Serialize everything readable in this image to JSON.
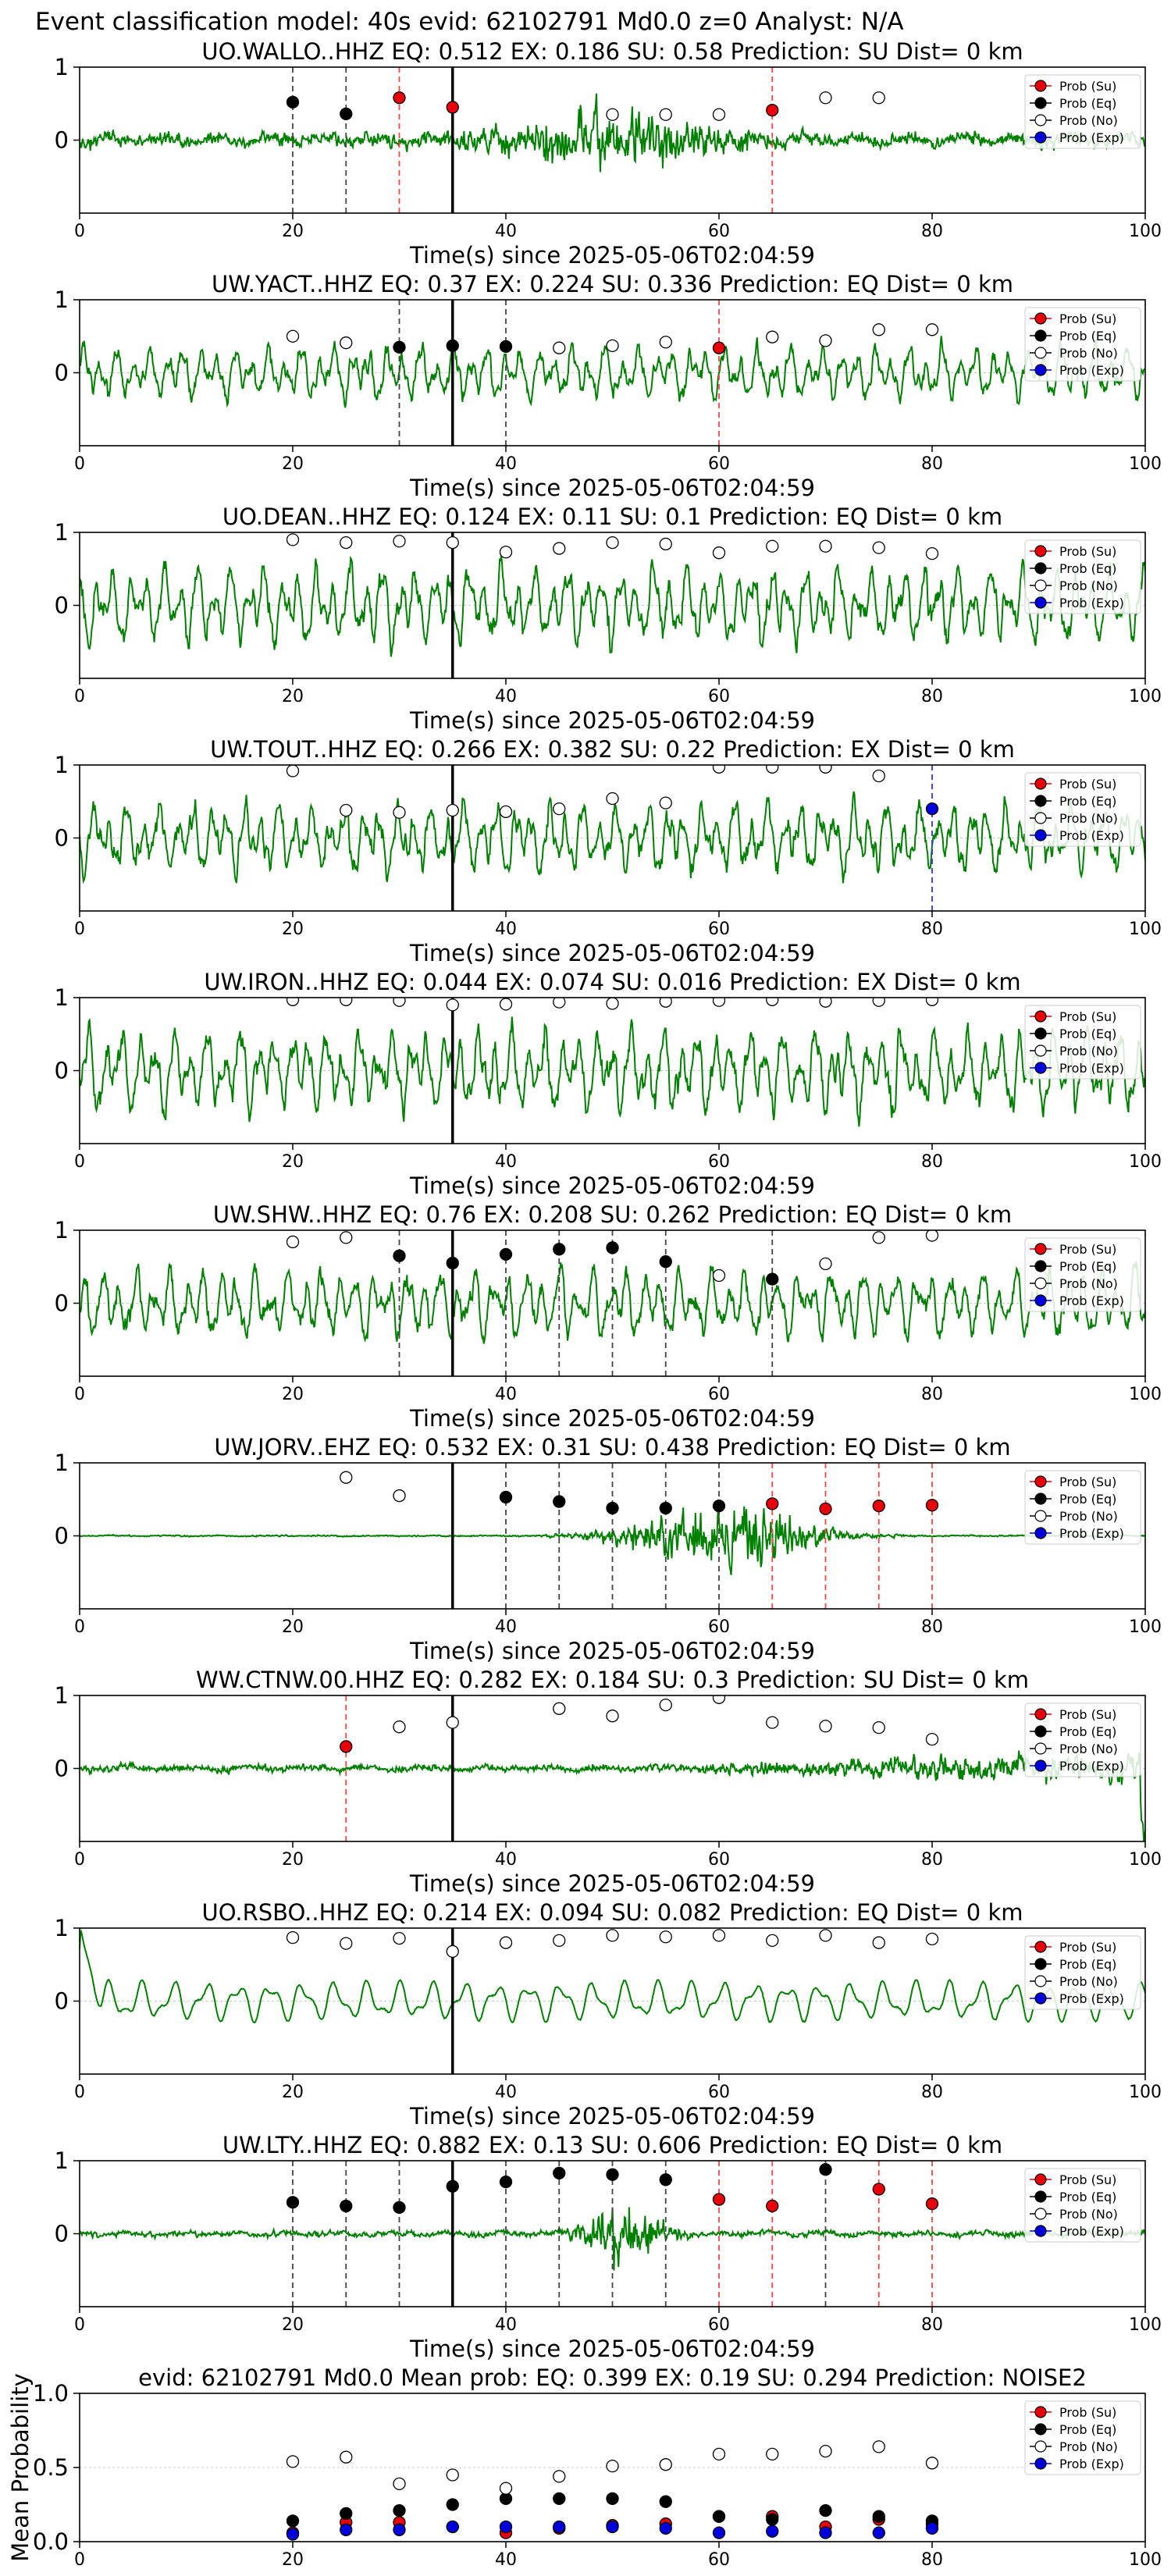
{
  "figure": {
    "suptitle": "Event classification model: 40s evid: 62102791 Md0.0 z=0 Analyst: N/A"
  },
  "legend_labels": [
    "Prob (Su)",
    "Prob (Eq)",
    "Prob (No)",
    "Prob (Exp)"
  ],
  "class_colors": {
    "su": "#e8000b",
    "eq": "#000000",
    "no": "#ffffff",
    "exp": "#0000dd"
  },
  "line_colors": {
    "waveform": "#008000",
    "su": "#ff4444",
    "eq": "#444444",
    "exp": "#3333ff",
    "onset": "#000000"
  },
  "chart_data": [
    {
      "type": "line",
      "title": "UO.WALLO..HHZ   EQ: 0.512  EX: 0.186  SU: 0.58   Prediction: SU    Dist= 0 km",
      "xlabel": "Time(s) since 2025-05-06T02:04:59",
      "xlim": [
        0,
        100
      ],
      "ylim": [
        -1,
        1
      ],
      "xticks": [
        0,
        20,
        40,
        60,
        80,
        100
      ],
      "yticks": [
        1,
        0
      ],
      "waveform": {
        "kind": "burst",
        "seed": 11,
        "amp": 0.12,
        "burst_center": 50,
        "burst_width": 12,
        "burst_amp": 0.45
      },
      "onset": 35,
      "points": [
        {
          "t": 20,
          "c": "eq",
          "p": 0.52
        },
        {
          "t": 25,
          "c": "eq",
          "p": 0.36
        },
        {
          "t": 30,
          "c": "su",
          "p": 0.58
        },
        {
          "t": 35,
          "c": "su",
          "p": 0.45
        },
        {
          "t": 50,
          "c": "no",
          "p": 0.35
        },
        {
          "t": 55,
          "c": "no",
          "p": 0.35
        },
        {
          "t": 60,
          "c": "no",
          "p": 0.35
        },
        {
          "t": 65,
          "c": "su",
          "p": 0.41
        },
        {
          "t": 70,
          "c": "no",
          "p": 0.58
        },
        {
          "t": 75,
          "c": "no",
          "p": 0.58
        }
      ]
    },
    {
      "type": "line",
      "title": "UW.YACT..HHZ   EQ: 0.37  EX: 0.224  SU: 0.336   Prediction: EQ    Dist= 0 km",
      "xlabel": "Time(s) since 2025-05-06T02:04:59",
      "xlim": [
        0,
        100
      ],
      "ylim": [
        -1,
        1
      ],
      "xticks": [
        0,
        20,
        40,
        60,
        80,
        100
      ],
      "yticks": [
        1,
        0
      ],
      "waveform": {
        "kind": "osc",
        "seed": 22,
        "amp": 0.38
      },
      "onset": 35,
      "points": [
        {
          "t": 20,
          "c": "no",
          "p": 0.5
        },
        {
          "t": 25,
          "c": "no",
          "p": 0.41
        },
        {
          "t": 30,
          "c": "eq",
          "p": 0.35
        },
        {
          "t": 35,
          "c": "eq",
          "p": 0.37
        },
        {
          "t": 40,
          "c": "eq",
          "p": 0.36
        },
        {
          "t": 45,
          "c": "no",
          "p": 0.34
        },
        {
          "t": 50,
          "c": "no",
          "p": 0.37
        },
        {
          "t": 55,
          "c": "no",
          "p": 0.42
        },
        {
          "t": 60,
          "c": "su",
          "p": 0.34
        },
        {
          "t": 65,
          "c": "no",
          "p": 0.49
        },
        {
          "t": 70,
          "c": "no",
          "p": 0.44
        },
        {
          "t": 75,
          "c": "no",
          "p": 0.59
        },
        {
          "t": 80,
          "c": "no",
          "p": 0.59
        }
      ]
    },
    {
      "type": "line",
      "title": "UO.DEAN..HHZ   EQ: 0.124  EX: 0.11  SU: 0.1   Prediction: EQ    Dist= 0 km",
      "xlabel": "Time(s) since 2025-05-06T02:04:59",
      "xlim": [
        0,
        100
      ],
      "ylim": [
        -1,
        1
      ],
      "xticks": [
        0,
        20,
        40,
        60,
        80,
        100
      ],
      "yticks": [
        1,
        0
      ],
      "waveform": {
        "kind": "osc",
        "seed": 33,
        "amp": 0.55
      },
      "onset": 35,
      "points": [
        {
          "t": 20,
          "c": "no",
          "p": 0.9
        },
        {
          "t": 25,
          "c": "no",
          "p": 0.86
        },
        {
          "t": 30,
          "c": "no",
          "p": 0.88
        },
        {
          "t": 35,
          "c": "no",
          "p": 0.86
        },
        {
          "t": 40,
          "c": "no",
          "p": 0.73
        },
        {
          "t": 45,
          "c": "no",
          "p": 0.78
        },
        {
          "t": 50,
          "c": "no",
          "p": 0.86
        },
        {
          "t": 55,
          "c": "no",
          "p": 0.84
        },
        {
          "t": 60,
          "c": "no",
          "p": 0.72
        },
        {
          "t": 65,
          "c": "no",
          "p": 0.81
        },
        {
          "t": 70,
          "c": "no",
          "p": 0.81
        },
        {
          "t": 75,
          "c": "no",
          "p": 0.79
        },
        {
          "t": 80,
          "c": "no",
          "p": 0.71
        }
      ]
    },
    {
      "type": "line",
      "title": "UW.TOUT..HHZ   EQ: 0.266  EX: 0.382  SU: 0.22   Prediction: EX    Dist= 0 km",
      "xlabel": "Time(s) since 2025-05-06T02:04:59",
      "xlim": [
        0,
        100
      ],
      "ylim": [
        -1,
        1
      ],
      "xticks": [
        0,
        20,
        40,
        60,
        80,
        100
      ],
      "yticks": [
        1,
        0
      ],
      "waveform": {
        "kind": "osc",
        "seed": 44,
        "amp": 0.5
      },
      "onset": 35,
      "points": [
        {
          "t": 20,
          "c": "no",
          "p": 0.92
        },
        {
          "t": 25,
          "c": "no",
          "p": 0.38
        },
        {
          "t": 30,
          "c": "no",
          "p": 0.35
        },
        {
          "t": 35,
          "c": "no",
          "p": 0.38
        },
        {
          "t": 40,
          "c": "no",
          "p": 0.36
        },
        {
          "t": 45,
          "c": "no",
          "p": 0.4
        },
        {
          "t": 50,
          "c": "no",
          "p": 0.54
        },
        {
          "t": 55,
          "c": "no",
          "p": 0.48
        },
        {
          "t": 60,
          "c": "no",
          "p": 0.97
        },
        {
          "t": 65,
          "c": "no",
          "p": 0.97
        },
        {
          "t": 70,
          "c": "no",
          "p": 0.97
        },
        {
          "t": 75,
          "c": "no",
          "p": 0.85
        },
        {
          "t": 80,
          "c": "exp",
          "p": 0.4
        }
      ]
    },
    {
      "type": "line",
      "title": "UW.IRON..HHZ   EQ: 0.044  EX: 0.074  SU: 0.016   Prediction: EX    Dist= 0 km",
      "xlabel": "Time(s) since 2025-05-06T02:04:59",
      "xlim": [
        0,
        100
      ],
      "ylim": [
        -1,
        1
      ],
      "xticks": [
        0,
        20,
        40,
        60,
        80,
        100
      ],
      "yticks": [
        1,
        0
      ],
      "waveform": {
        "kind": "osc",
        "seed": 55,
        "amp": 0.6
      },
      "onset": 35,
      "points": [
        {
          "t": 20,
          "c": "no",
          "p": 0.97
        },
        {
          "t": 25,
          "c": "no",
          "p": 0.97
        },
        {
          "t": 30,
          "c": "no",
          "p": 0.96
        },
        {
          "t": 35,
          "c": "no",
          "p": 0.9
        },
        {
          "t": 40,
          "c": "no",
          "p": 0.91
        },
        {
          "t": 45,
          "c": "no",
          "p": 0.94
        },
        {
          "t": 50,
          "c": "no",
          "p": 0.92
        },
        {
          "t": 55,
          "c": "no",
          "p": 0.95
        },
        {
          "t": 60,
          "c": "no",
          "p": 0.96
        },
        {
          "t": 65,
          "c": "no",
          "p": 0.97
        },
        {
          "t": 70,
          "c": "no",
          "p": 0.95
        },
        {
          "t": 75,
          "c": "no",
          "p": 0.96
        },
        {
          "t": 80,
          "c": "no",
          "p": 0.97
        }
      ]
    },
    {
      "type": "line",
      "title": "UW.SHW..HHZ   EQ: 0.76  EX: 0.208  SU: 0.262   Prediction: EQ    Dist= 0 km",
      "xlabel": "Time(s) since 2025-05-06T02:04:59",
      "xlim": [
        0,
        100
      ],
      "ylim": [
        -1,
        1
      ],
      "xticks": [
        0,
        20,
        40,
        60,
        80,
        100
      ],
      "yticks": [
        1,
        0
      ],
      "waveform": {
        "kind": "osc",
        "seed": 66,
        "amp": 0.48
      },
      "onset": 35,
      "points": [
        {
          "t": 20,
          "c": "no",
          "p": 0.84
        },
        {
          "t": 25,
          "c": "no",
          "p": 0.9
        },
        {
          "t": 30,
          "c": "eq",
          "p": 0.65
        },
        {
          "t": 35,
          "c": "eq",
          "p": 0.55
        },
        {
          "t": 40,
          "c": "eq",
          "p": 0.67
        },
        {
          "t": 45,
          "c": "eq",
          "p": 0.74
        },
        {
          "t": 50,
          "c": "eq",
          "p": 0.76
        },
        {
          "t": 55,
          "c": "eq",
          "p": 0.57
        },
        {
          "t": 60,
          "c": "no",
          "p": 0.38
        },
        {
          "t": 65,
          "c": "eq",
          "p": 0.33
        },
        {
          "t": 70,
          "c": "no",
          "p": 0.54
        },
        {
          "t": 75,
          "c": "no",
          "p": 0.9
        },
        {
          "t": 80,
          "c": "no",
          "p": 0.93
        }
      ]
    },
    {
      "type": "line",
      "title": "UW.JORV..EHZ   EQ: 0.532  EX: 0.31  SU: 0.438   Prediction: EQ    Dist= 0 km",
      "xlabel": "Time(s) since 2025-05-06T02:04:59",
      "xlim": [
        0,
        100
      ],
      "ylim": [
        -1,
        1
      ],
      "xticks": [
        0,
        20,
        40,
        60,
        80,
        100
      ],
      "yticks": [
        1,
        0
      ],
      "waveform": {
        "kind": "burst",
        "seed": 77,
        "amp": 0.012,
        "burst_center": 60,
        "burst_width": 9,
        "burst_amp": 0.55
      },
      "onset": 35,
      "points": [
        {
          "t": 25,
          "c": "no",
          "p": 0.8
        },
        {
          "t": 30,
          "c": "no",
          "p": 0.55
        },
        {
          "t": 40,
          "c": "eq",
          "p": 0.53
        },
        {
          "t": 45,
          "c": "eq",
          "p": 0.47
        },
        {
          "t": 50,
          "c": "eq",
          "p": 0.38
        },
        {
          "t": 55,
          "c": "eq",
          "p": 0.38
        },
        {
          "t": 60,
          "c": "eq",
          "p": 0.41
        },
        {
          "t": 65,
          "c": "su",
          "p": 0.44
        },
        {
          "t": 70,
          "c": "su",
          "p": 0.37
        },
        {
          "t": 75,
          "c": "su",
          "p": 0.41
        },
        {
          "t": 80,
          "c": "su",
          "p": 0.42
        }
      ]
    },
    {
      "type": "line",
      "title": "WW.CTNW.00.HHZ   EQ: 0.282  EX: 0.184  SU: 0.3   Prediction: SU    Dist= 0 km",
      "xlabel": "Time(s) since 2025-05-06T02:04:59",
      "xlim": [
        0,
        100
      ],
      "ylim": [
        -1,
        1
      ],
      "xticks": [
        0,
        20,
        40,
        60,
        80,
        100
      ],
      "yticks": [
        1,
        0
      ],
      "waveform": {
        "kind": "noise_ramp",
        "seed": 88,
        "amp": 0.06,
        "end_amp": 0.3
      },
      "onset": 35,
      "points": [
        {
          "t": 25,
          "c": "su",
          "p": 0.3
        },
        {
          "t": 30,
          "c": "no",
          "p": 0.57
        },
        {
          "t": 35,
          "c": "no",
          "p": 0.63
        },
        {
          "t": 45,
          "c": "no",
          "p": 0.82
        },
        {
          "t": 50,
          "c": "no",
          "p": 0.72
        },
        {
          "t": 55,
          "c": "no",
          "p": 0.87
        },
        {
          "t": 60,
          "c": "no",
          "p": 0.97
        },
        {
          "t": 65,
          "c": "no",
          "p": 0.63
        },
        {
          "t": 70,
          "c": "no",
          "p": 0.58
        },
        {
          "t": 75,
          "c": "no",
          "p": 0.56
        },
        {
          "t": 80,
          "c": "no",
          "p": 0.4
        }
      ]
    },
    {
      "type": "line",
      "title": "UO.RSBO..HHZ   EQ: 0.214  EX: 0.094  SU: 0.082   Prediction: EQ    Dist= 0 km",
      "xlabel": "Time(s) since 2025-05-06T02:04:59",
      "xlim": [
        0,
        100
      ],
      "ylim": [
        -1,
        1
      ],
      "xticks": [
        0,
        20,
        40,
        60,
        80,
        100
      ],
      "yticks": [
        1,
        0
      ],
      "waveform": {
        "kind": "smooth",
        "seed": 99,
        "amp": 0.28
      },
      "onset": 35,
      "points": [
        {
          "t": 20,
          "c": "no",
          "p": 0.87
        },
        {
          "t": 25,
          "c": "no",
          "p": 0.79
        },
        {
          "t": 30,
          "c": "no",
          "p": 0.86
        },
        {
          "t": 35,
          "c": "no",
          "p": 0.68
        },
        {
          "t": 40,
          "c": "no",
          "p": 0.8
        },
        {
          "t": 45,
          "c": "no",
          "p": 0.83
        },
        {
          "t": 50,
          "c": "no",
          "p": 0.9
        },
        {
          "t": 55,
          "c": "no",
          "p": 0.88
        },
        {
          "t": 60,
          "c": "no",
          "p": 0.9
        },
        {
          "t": 65,
          "c": "no",
          "p": 0.83
        },
        {
          "t": 70,
          "c": "no",
          "p": 0.9
        },
        {
          "t": 75,
          "c": "no",
          "p": 0.8
        },
        {
          "t": 80,
          "c": "no",
          "p": 0.85
        }
      ]
    },
    {
      "type": "line",
      "title": "UW.LTY..HHZ   EQ: 0.882  EX: 0.13  SU: 0.606   Prediction: EQ    Dist= 0 km",
      "xlabel": "Time(s) since 2025-05-06T02:04:59",
      "xlim": [
        0,
        100
      ],
      "ylim": [
        -1,
        1
      ],
      "xticks": [
        0,
        20,
        40,
        60,
        80,
        100
      ],
      "yticks": [
        1,
        0
      ],
      "waveform": {
        "kind": "burst",
        "seed": 111,
        "amp": 0.05,
        "burst_center": 51,
        "burst_width": 4,
        "burst_amp": 0.55
      },
      "onset": 35,
      "points": [
        {
          "t": 20,
          "c": "eq",
          "p": 0.43
        },
        {
          "t": 25,
          "c": "eq",
          "p": 0.38
        },
        {
          "t": 30,
          "c": "eq",
          "p": 0.36
        },
        {
          "t": 35,
          "c": "eq",
          "p": 0.65
        },
        {
          "t": 40,
          "c": "eq",
          "p": 0.71
        },
        {
          "t": 45,
          "c": "eq",
          "p": 0.83
        },
        {
          "t": 50,
          "c": "eq",
          "p": 0.81
        },
        {
          "t": 55,
          "c": "eq",
          "p": 0.74
        },
        {
          "t": 60,
          "c": "su",
          "p": 0.47
        },
        {
          "t": 65,
          "c": "su",
          "p": 0.38
        },
        {
          "t": 70,
          "c": "eq",
          "p": 0.88
        },
        {
          "t": 75,
          "c": "su",
          "p": 0.61
        },
        {
          "t": 80,
          "c": "su",
          "p": 0.41
        }
      ]
    },
    {
      "type": "scatter",
      "title": "evid: 62102791  Md0.0   Mean prob:   EQ: 0.399  EX: 0.19  SU: 0.294   Prediction: NOISE2",
      "xlabel": "",
      "ylabel": "Mean Probability",
      "xlim": [
        0,
        100
      ],
      "ylim": [
        0,
        1
      ],
      "xticks": [
        0,
        20,
        40,
        60,
        80,
        100
      ],
      "yticks": [
        1.0,
        0.5,
        0.0
      ],
      "series": [
        {
          "name": "Prob (Su)",
          "c": "su",
          "x": [
            20,
            25,
            30,
            35,
            40,
            45,
            50,
            55,
            60,
            65,
            70,
            75,
            80
          ],
          "y": [
            0.06,
            0.13,
            0.13,
            0.1,
            0.06,
            0.09,
            0.11,
            0.12,
            0.17,
            0.17,
            0.1,
            0.15,
            0.12
          ]
        },
        {
          "name": "Prob (Eq)",
          "c": "eq",
          "x": [
            20,
            25,
            30,
            35,
            40,
            45,
            50,
            55,
            60,
            65,
            70,
            75,
            80
          ],
          "y": [
            0.14,
            0.19,
            0.21,
            0.25,
            0.29,
            0.29,
            0.29,
            0.27,
            0.17,
            0.15,
            0.21,
            0.17,
            0.14
          ]
        },
        {
          "name": "Prob (No)",
          "c": "no",
          "x": [
            20,
            25,
            30,
            35,
            40,
            45,
            50,
            55,
            60,
            65,
            70,
            75,
            80
          ],
          "y": [
            0.54,
            0.57,
            0.39,
            0.45,
            0.36,
            0.44,
            0.51,
            0.52,
            0.59,
            0.59,
            0.61,
            0.64,
            0.53
          ]
        },
        {
          "name": "Prob (Exp)",
          "c": "exp",
          "x": [
            20,
            25,
            30,
            35,
            40,
            45,
            50,
            55,
            60,
            65,
            70,
            75,
            80
          ],
          "y": [
            0.05,
            0.08,
            0.08,
            0.1,
            0.1,
            0.1,
            0.1,
            0.09,
            0.06,
            0.07,
            0.06,
            0.06,
            0.09
          ]
        }
      ]
    }
  ]
}
